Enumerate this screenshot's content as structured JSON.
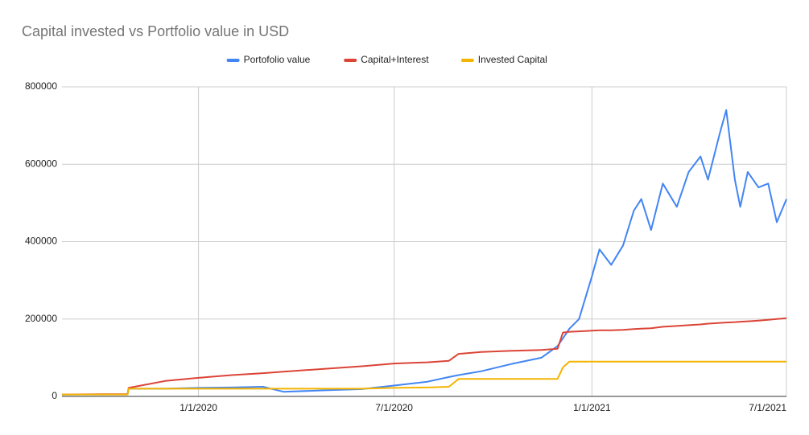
{
  "chart_data": {
    "type": "line",
    "title": "Capital invested vs Portfolio value in USD",
    "x": [
      "8/27/2019",
      "10/27/2019",
      "10/28/2019",
      "12/1/2019",
      "1/1/2020",
      "2/1/2020",
      "3/1/2020",
      "3/20/2020",
      "5/1/2020",
      "6/1/2020",
      "7/1/2020",
      "8/1/2020",
      "8/21/2020",
      "8/30/2020",
      "9/20/2020",
      "10/20/2020",
      "11/15/2020",
      "11/30/2020",
      "12/5/2020",
      "12/11/2020",
      "12/20/2020",
      "1/1/2021",
      "1/8/2021",
      "1/19/2021",
      "1/30/2021",
      "2/9/2021",
      "2/16/2021",
      "2/25/2021",
      "3/8/2021",
      "3/21/2021",
      "4/1/2021",
      "4/12/2021",
      "4/19/2021",
      "4/30/2021",
      "5/6/2021",
      "5/14/2021",
      "5/19/2021",
      "5/26/2021",
      "6/5/2021",
      "6/14/2021",
      "6/22/2021",
      "7/1/2021"
    ],
    "series": [
      {
        "name": "Portofolio value",
        "color": "#4285f4",
        "values": [
          5000,
          5000,
          20000,
          20000,
          22000,
          23000,
          25000,
          12000,
          16000,
          19000,
          28000,
          38000,
          50000,
          55000,
          65000,
          85000,
          100000,
          130000,
          150000,
          175000,
          200000,
          310000,
          380000,
          340000,
          390000,
          480000,
          510000,
          430000,
          550000,
          490000,
          580000,
          620000,
          560000,
          680000,
          740000,
          560000,
          490000,
          580000,
          540000,
          550000,
          450000,
          510000
        ]
      },
      {
        "name": "Capital+Interest",
        "color": "#db4437",
        "values": [
          5000,
          6000,
          22000,
          40000,
          48000,
          55000,
          60000,
          64000,
          72000,
          78000,
          85000,
          88000,
          92000,
          110000,
          115000,
          118000,
          120000,
          123000,
          165000,
          167000,
          168000,
          170000,
          171000,
          171000,
          172000,
          174000,
          175000,
          176000,
          180000,
          182000,
          184000,
          186000,
          188000,
          190000,
          191000,
          192000,
          193000,
          194000,
          196000,
          198000,
          200000,
          202000
        ]
      },
      {
        "name": "Invested Capital",
        "color": "#f4b400",
        "values": [
          5000,
          5000,
          20000,
          20000,
          20000,
          20000,
          20000,
          20000,
          20000,
          20000,
          22000,
          23000,
          25000,
          45000,
          45000,
          45000,
          45000,
          45000,
          75000,
          90000,
          90000,
          90000,
          90000,
          90000,
          90000,
          90000,
          90000,
          90000,
          90000,
          90000,
          90000,
          90000,
          90000,
          90000,
          90000,
          90000,
          90000,
          90000,
          90000,
          90000,
          90000,
          90000
        ]
      }
    ],
    "xlim": [
      "8/27/2019",
      "7/1/2021"
    ],
    "xticks": [
      "1/1/2020",
      "7/1/2020",
      "1/1/2021",
      "7/1/2021"
    ],
    "ylim": [
      0,
      800000
    ],
    "yticks": [
      0,
      200000,
      400000,
      600000,
      800000
    ],
    "grid": true,
    "legend": "top"
  }
}
